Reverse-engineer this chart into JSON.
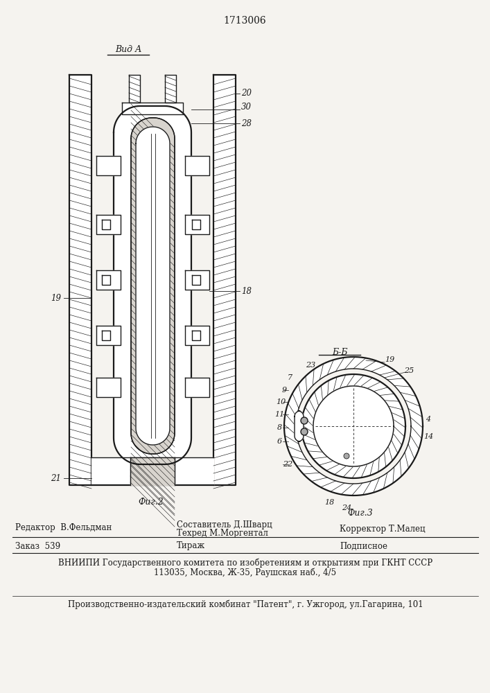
{
  "patent_number": "1713006",
  "bg_color": "#f5f3ef",
  "line_color": "#1a1a1a",
  "fig2_label": "Фиг.2",
  "fig3_label": "Фиг.3",
  "view_label": "Вид А",
  "section_label": "Б-Б",
  "editor_line": "Редактор  В.Фельдман",
  "composer_line": "Составитель Д.Шварц",
  "techred_line": "Техред М.Моргентал",
  "corrector_line": "Корректор Т.Малец",
  "order_line": "Заказ  539",
  "tirazh_line": "Тираж",
  "podpisnoe_line": "Подписное",
  "vniiipi_line": "ВНИИПИ Государственного комитета по изобретениям и открытиям при ГКНТ СССР",
  "address_line": "113035, Москва, Ж-35, Раушская наб., 4/5",
  "factory_line": "Производственно-издательский комбинат \"Патент\", г. Ужгород, ул.Гагарина, 101"
}
